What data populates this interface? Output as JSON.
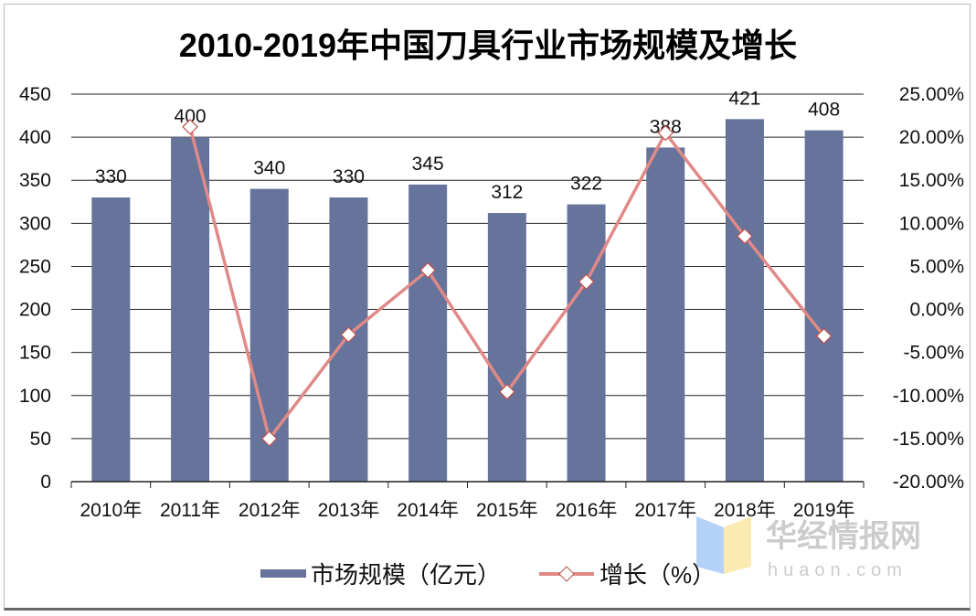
{
  "chart_data": {
    "type": "bar+line",
    "title": "2010-2019年中国刀具行业市场规模及增长",
    "categories": [
      "2010年",
      "2011年",
      "2012年",
      "2013年",
      "2014年",
      "2015年",
      "2016年",
      "2017年",
      "2018年",
      "2019年"
    ],
    "series": [
      {
        "name": "市场规模（亿元）",
        "type": "bar",
        "axis": "left",
        "color": "#66739b",
        "values": [
          330,
          400,
          340,
          330,
          345,
          312,
          322,
          388,
          421,
          408
        ]
      },
      {
        "name": "增长（%）",
        "type": "line",
        "axis": "right",
        "color": "#e08a88",
        "marker": "diamond",
        "values": [
          null,
          21.2,
          -15.0,
          -2.94,
          4.55,
          -9.57,
          3.21,
          20.5,
          8.5,
          -3.09
        ]
      }
    ],
    "y_left": {
      "range": [
        0,
        450
      ],
      "ticks": [
        "0",
        "50",
        "100",
        "150",
        "200",
        "250",
        "300",
        "350",
        "400",
        "450"
      ]
    },
    "y_right": {
      "range": [
        -20,
        25
      ],
      "ticks": [
        "-20.00%",
        "-15.00%",
        "-10.00%",
        "-5.00%",
        "0.00%",
        "5.00%",
        "10.00%",
        "15.00%",
        "20.00%",
        "25.00%"
      ]
    },
    "grid": true,
    "legend": "bottom"
  },
  "watermark": {
    "name": "华经情报网",
    "url_text": "huaon.com"
  }
}
